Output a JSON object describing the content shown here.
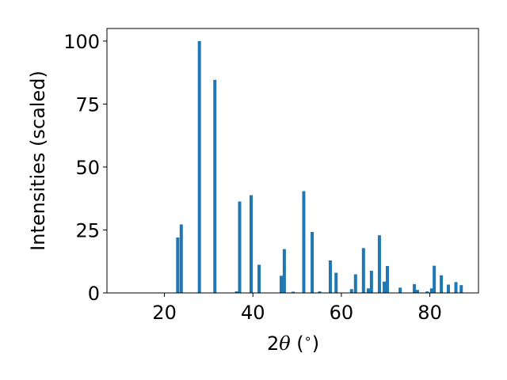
{
  "chart_data": {
    "type": "bar",
    "title": "",
    "xlabel_parts": [
      "2",
      "θ",
      " (",
      "∘",
      ")"
    ],
    "ylabel": "Intensities (scaled)",
    "xlim": [
      7,
      91
    ],
    "ylim": [
      0,
      105
    ],
    "xticks": [
      20,
      40,
      60,
      80
    ],
    "yticks": [
      0,
      25,
      50,
      75,
      100
    ],
    "bar_color": "#1f77b4",
    "grid": false,
    "legend": "none",
    "peaks": [
      {
        "x": 23.0,
        "y": 22.0
      },
      {
        "x": 23.8,
        "y": 27.2
      },
      {
        "x": 27.9,
        "y": 100.0
      },
      {
        "x": 31.4,
        "y": 84.6
      },
      {
        "x": 36.3,
        "y": 0.6
      },
      {
        "x": 37.0,
        "y": 36.3
      },
      {
        "x": 39.6,
        "y": 38.8
      },
      {
        "x": 41.4,
        "y": 11.2
      },
      {
        "x": 46.4,
        "y": 6.8
      },
      {
        "x": 47.1,
        "y": 17.4
      },
      {
        "x": 49.1,
        "y": 0.5
      },
      {
        "x": 51.5,
        "y": 40.4
      },
      {
        "x": 53.4,
        "y": 24.2
      },
      {
        "x": 55.1,
        "y": 0.6
      },
      {
        "x": 57.5,
        "y": 12.9
      },
      {
        "x": 58.8,
        "y": 8.0
      },
      {
        "x": 62.3,
        "y": 1.5
      },
      {
        "x": 63.2,
        "y": 7.4
      },
      {
        "x": 65.0,
        "y": 17.8
      },
      {
        "x": 66.1,
        "y": 1.8
      },
      {
        "x": 66.8,
        "y": 8.8
      },
      {
        "x": 68.6,
        "y": 22.9
      },
      {
        "x": 69.7,
        "y": 4.5
      },
      {
        "x": 70.4,
        "y": 10.7
      },
      {
        "x": 73.3,
        "y": 2.1
      },
      {
        "x": 76.5,
        "y": 3.5
      },
      {
        "x": 77.2,
        "y": 1.2
      },
      {
        "x": 79.4,
        "y": 0.6
      },
      {
        "x": 80.4,
        "y": 1.8
      },
      {
        "x": 81.0,
        "y": 10.8
      },
      {
        "x": 82.6,
        "y": 7.0
      },
      {
        "x": 84.2,
        "y": 3.3
      },
      {
        "x": 85.9,
        "y": 4.3
      },
      {
        "x": 87.1,
        "y": 3.1
      }
    ]
  }
}
